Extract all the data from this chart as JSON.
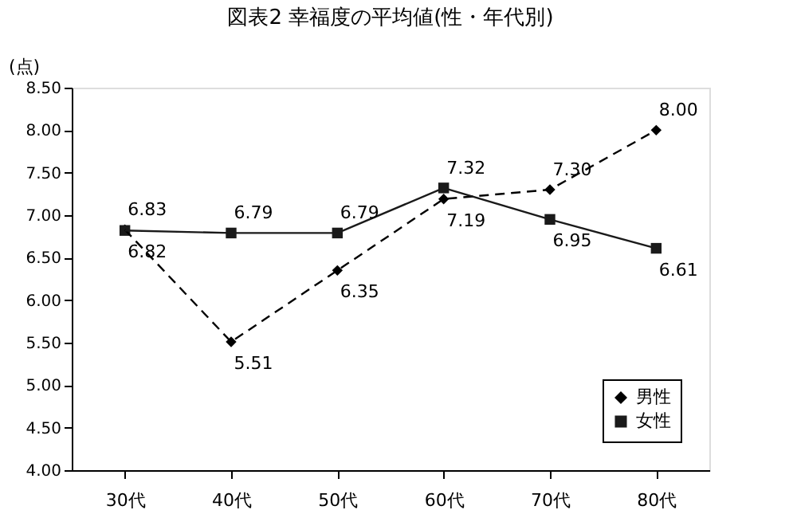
{
  "chart_data": {
    "type": "line",
    "title": "図表2 幸福度の平均値(性・年代別)",
    "ylabel": "(点)",
    "categories": [
      "30代",
      "40代",
      "50代",
      "60代",
      "70代",
      "80代"
    ],
    "series": [
      {
        "name": "男性",
        "color": "#000000",
        "line_style": "dashed",
        "marker": "diamond",
        "values": [
          6.83,
          5.51,
          6.35,
          7.19,
          7.3,
          8.0
        ],
        "value_labels": [
          "6.83",
          "5.51",
          "6.35",
          "7.19",
          "7.30",
          "8.00"
        ]
      },
      {
        "name": "女性",
        "color": "#1a1a1a",
        "line_style": "solid",
        "marker": "square",
        "values": [
          6.82,
          6.79,
          6.79,
          7.32,
          6.95,
          6.61
        ],
        "value_labels": [
          "6.82",
          "6.79",
          "6.79",
          "7.32",
          "6.95",
          "6.61"
        ]
      }
    ],
    "ylim": [
      4.0,
      8.5
    ],
    "yticks": [
      {
        "value": 4.0,
        "label": "4.00"
      },
      {
        "value": 4.5,
        "label": "4.50"
      },
      {
        "value": 5.0,
        "label": "5.00"
      },
      {
        "value": 5.5,
        "label": "5.50"
      },
      {
        "value": 6.0,
        "label": "6.00"
      },
      {
        "value": 6.5,
        "label": "6.50"
      },
      {
        "value": 7.0,
        "label": "7.00"
      },
      {
        "value": 7.5,
        "label": "7.50"
      },
      {
        "value": 8.0,
        "label": "8.00"
      },
      {
        "value": 8.5,
        "label": "8.50"
      }
    ],
    "grid": false,
    "legend": "bottom right"
  }
}
